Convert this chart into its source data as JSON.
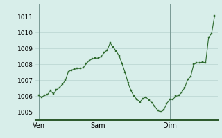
{
  "background_color": "#d8eeea",
  "plot_bg_color": "#d8eeea",
  "grid_color": "#b8d4cf",
  "line_color": "#2d6a2d",
  "marker_color": "#2d6a2d",
  "vline_color": "#7a9a95",
  "bottom_spine_color": "#2d5a2d",
  "x_tick_labels": [
    "Ven",
    "Sam",
    "Dim"
  ],
  "ylim": [
    1004.5,
    1011.8
  ],
  "yticks": [
    1005,
    1006,
    1007,
    1008,
    1009,
    1010,
    1011
  ],
  "ylabel_fontsize": 6.5,
  "xlabel_fontsize": 7,
  "values": [
    1006.05,
    1005.95,
    1006.05,
    1006.1,
    1006.35,
    1006.15,
    1006.4,
    1006.55,
    1006.75,
    1007.0,
    1007.55,
    1007.65,
    1007.7,
    1007.75,
    1007.75,
    1007.8,
    1008.05,
    1008.25,
    1008.35,
    1008.4,
    1008.4,
    1008.5,
    1008.75,
    1008.9,
    1009.35,
    1009.1,
    1008.85,
    1008.55,
    1008.05,
    1007.5,
    1006.85,
    1006.35,
    1006.0,
    1005.8,
    1005.65,
    1005.85,
    1005.95,
    1005.75,
    1005.6,
    1005.35,
    1005.1,
    1005.0,
    1005.15,
    1005.55,
    1005.8,
    1005.8,
    1006.0,
    1006.05,
    1006.25,
    1006.55,
    1007.05,
    1007.25,
    1008.0,
    1008.1,
    1008.1,
    1008.15,
    1008.1,
    1009.7,
    1009.95,
    1011.05
  ],
  "n_points": 60,
  "ven_idx": 0,
  "sam_idx": 20,
  "dim_idx": 44
}
